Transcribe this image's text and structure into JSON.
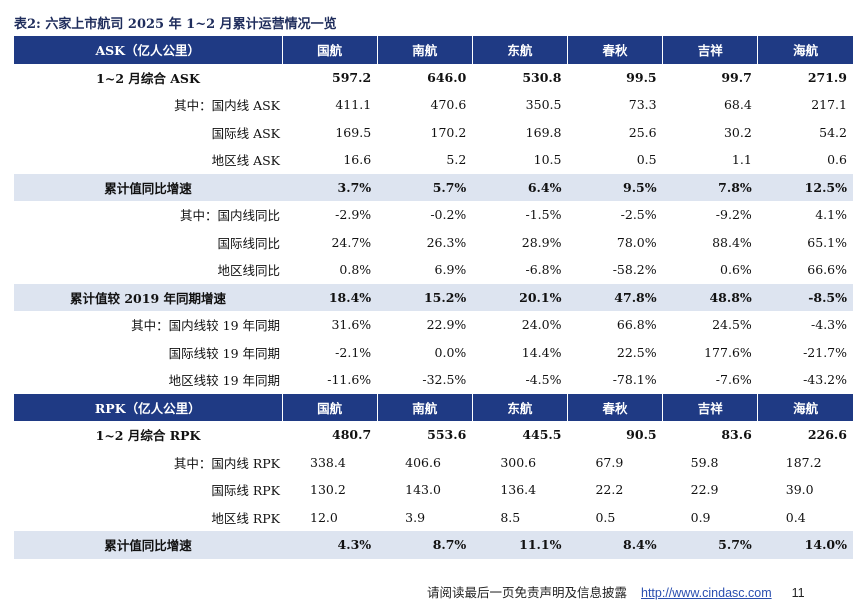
{
  "title": {
    "prefix": "表2:",
    "text": "六家上市航司 2025 年 1~2 月累计运营情况一览"
  },
  "airlines": [
    "国航",
    "南航",
    "东航",
    "春秋",
    "吉祥",
    "海航"
  ],
  "ask_header": "ASK（亿人公里）",
  "rpk_header": "RPK（亿人公里）",
  "ask_rows": [
    {
      "label": "1~2 月综合 ASK",
      "values": [
        "597.2",
        "646.0",
        "530.8",
        "99.5",
        "99.7",
        "271.9"
      ],
      "style": "sum"
    },
    {
      "label": "其中：国内线 ASK",
      "values": [
        "411.1",
        "470.6",
        "350.5",
        "73.3",
        "68.4",
        "217.1"
      ],
      "style": "plain"
    },
    {
      "label": "国际线 ASK",
      "values": [
        "169.5",
        "170.2",
        "169.8",
        "25.6",
        "30.2",
        "54.2"
      ],
      "style": "plain"
    },
    {
      "label": "地区线 ASK",
      "values": [
        "16.6",
        "5.2",
        "10.5",
        "0.5",
        "1.1",
        "0.6"
      ],
      "style": "plain"
    },
    {
      "label": "累计值同比增速",
      "values": [
        "3.7%",
        "5.7%",
        "6.4%",
        "9.5%",
        "7.8%",
        "12.5%"
      ],
      "style": "shade"
    },
    {
      "label": "其中：国内线同比",
      "values": [
        "-2.9%",
        "-0.2%",
        "-1.5%",
        "-2.5%",
        "-9.2%",
        "4.1%"
      ],
      "style": "plain"
    },
    {
      "label": "国际线同比",
      "values": [
        "24.7%",
        "26.3%",
        "28.9%",
        "78.0%",
        "88.4%",
        "65.1%"
      ],
      "style": "plain"
    },
    {
      "label": "地区线同比",
      "values": [
        "0.8%",
        "6.9%",
        "-6.8%",
        "-58.2%",
        "0.6%",
        "66.6%"
      ],
      "style": "plain"
    },
    {
      "label": "累计值较 2019 年同期增速",
      "values": [
        "18.4%",
        "15.2%",
        "20.1%",
        "47.8%",
        "48.8%",
        "-8.5%"
      ],
      "style": "shade"
    },
    {
      "label": "其中：国内线较 19 年同期",
      "values": [
        "31.6%",
        "22.9%",
        "24.0%",
        "66.8%",
        "24.5%",
        "-4.3%"
      ],
      "style": "plain"
    },
    {
      "label": "国际线较 19 年同期",
      "values": [
        "-2.1%",
        "0.0%",
        "14.4%",
        "22.5%",
        "177.6%",
        "-21.7%"
      ],
      "style": "plain"
    },
    {
      "label": "地区线较 19 年同期",
      "values": [
        "-11.6%",
        "-32.5%",
        "-4.5%",
        "-78.1%",
        "-7.6%",
        "-43.2%"
      ],
      "style": "plain"
    }
  ],
  "rpk_rows": [
    {
      "label": "1~2 月综合 RPK",
      "values": [
        "480.7",
        "553.6",
        "445.5",
        "90.5",
        "83.6",
        "226.6"
      ],
      "style": "sum"
    },
    {
      "label": "其中：国内线 RPK",
      "values": [
        "338.4",
        "406.6",
        "300.6",
        "67.9",
        "59.8",
        "187.2"
      ],
      "style": "plainL"
    },
    {
      "label": "国际线 RPK",
      "values": [
        "130.2",
        "143.0",
        "136.4",
        "22.2",
        "22.9",
        "39.0"
      ],
      "style": "plainL"
    },
    {
      "label": "地区线 RPK",
      "values": [
        "12.0",
        "3.9",
        "8.5",
        "0.5",
        "0.9",
        "0.4"
      ],
      "style": "plainL"
    },
    {
      "label": "累计值同比增速",
      "values": [
        "4.3%",
        "8.7%",
        "11.1%",
        "8.4%",
        "5.7%",
        "14.0%"
      ],
      "style": "shade"
    }
  ],
  "footer": {
    "disclaimer": "请阅读最后一页免责声明及信息披露",
    "url": "http://www.cindasc.com",
    "page": "11"
  }
}
